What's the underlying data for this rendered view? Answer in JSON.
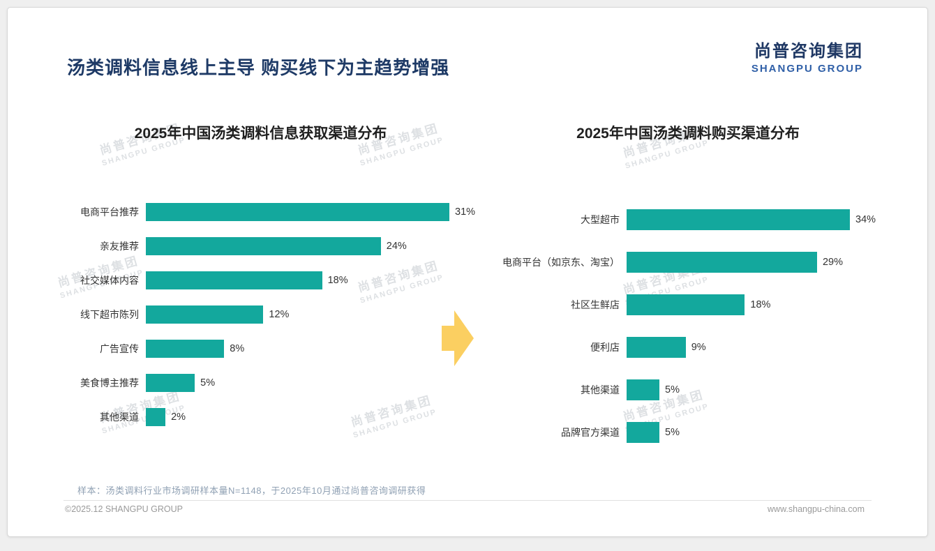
{
  "header": {
    "title": "汤类调料信息线上主导 购买线下为主趋势增强",
    "logo": {
      "cn": "尚普咨询集团",
      "en": "SHANGPU GROUP"
    }
  },
  "watermark": {
    "cn": "尚普咨询集团",
    "en": "SHANGPU GROUP"
  },
  "colors": {
    "bar": "#13a89d",
    "title_navy": "#1e3a66",
    "logo_blue": "#2f5fa7",
    "arrow_gold": "#fbcf61"
  },
  "chart_data": [
    {
      "type": "bar",
      "orientation": "horizontal",
      "title": "2025年中国汤类调料信息获取渠道分布",
      "categories": [
        "电商平台推荐",
        "亲友推荐",
        "社交媒体内容",
        "线下超市陈列",
        "广告宣传",
        "美食博主推荐",
        "其他渠道"
      ],
      "values": [
        31,
        24,
        18,
        12,
        8,
        5,
        2
      ],
      "unit": "%",
      "xlim": [
        0,
        31
      ],
      "grid": false,
      "legend": false,
      "bar_color": "#13a89d"
    },
    {
      "type": "bar",
      "orientation": "horizontal",
      "title": "2025年中国汤类调料购买渠道分布",
      "categories": [
        "大型超市",
        "电商平台（如京东、淘宝）",
        "社区生鲜店",
        "便利店",
        "其他渠道",
        "品牌官方渠道"
      ],
      "values": [
        34,
        29,
        18,
        9,
        5,
        5
      ],
      "unit": "%",
      "xlim": [
        0,
        34
      ],
      "grid": false,
      "legend": false,
      "bar_color": "#13a89d"
    }
  ],
  "footer": {
    "sample_note": "样本：汤类调料行业市场调研样本量N=1148，于2025年10月通过尚普咨询调研获得",
    "copyright": "©2025.12 SHANGPU GROUP",
    "website": "www.shangpu-china.com"
  }
}
